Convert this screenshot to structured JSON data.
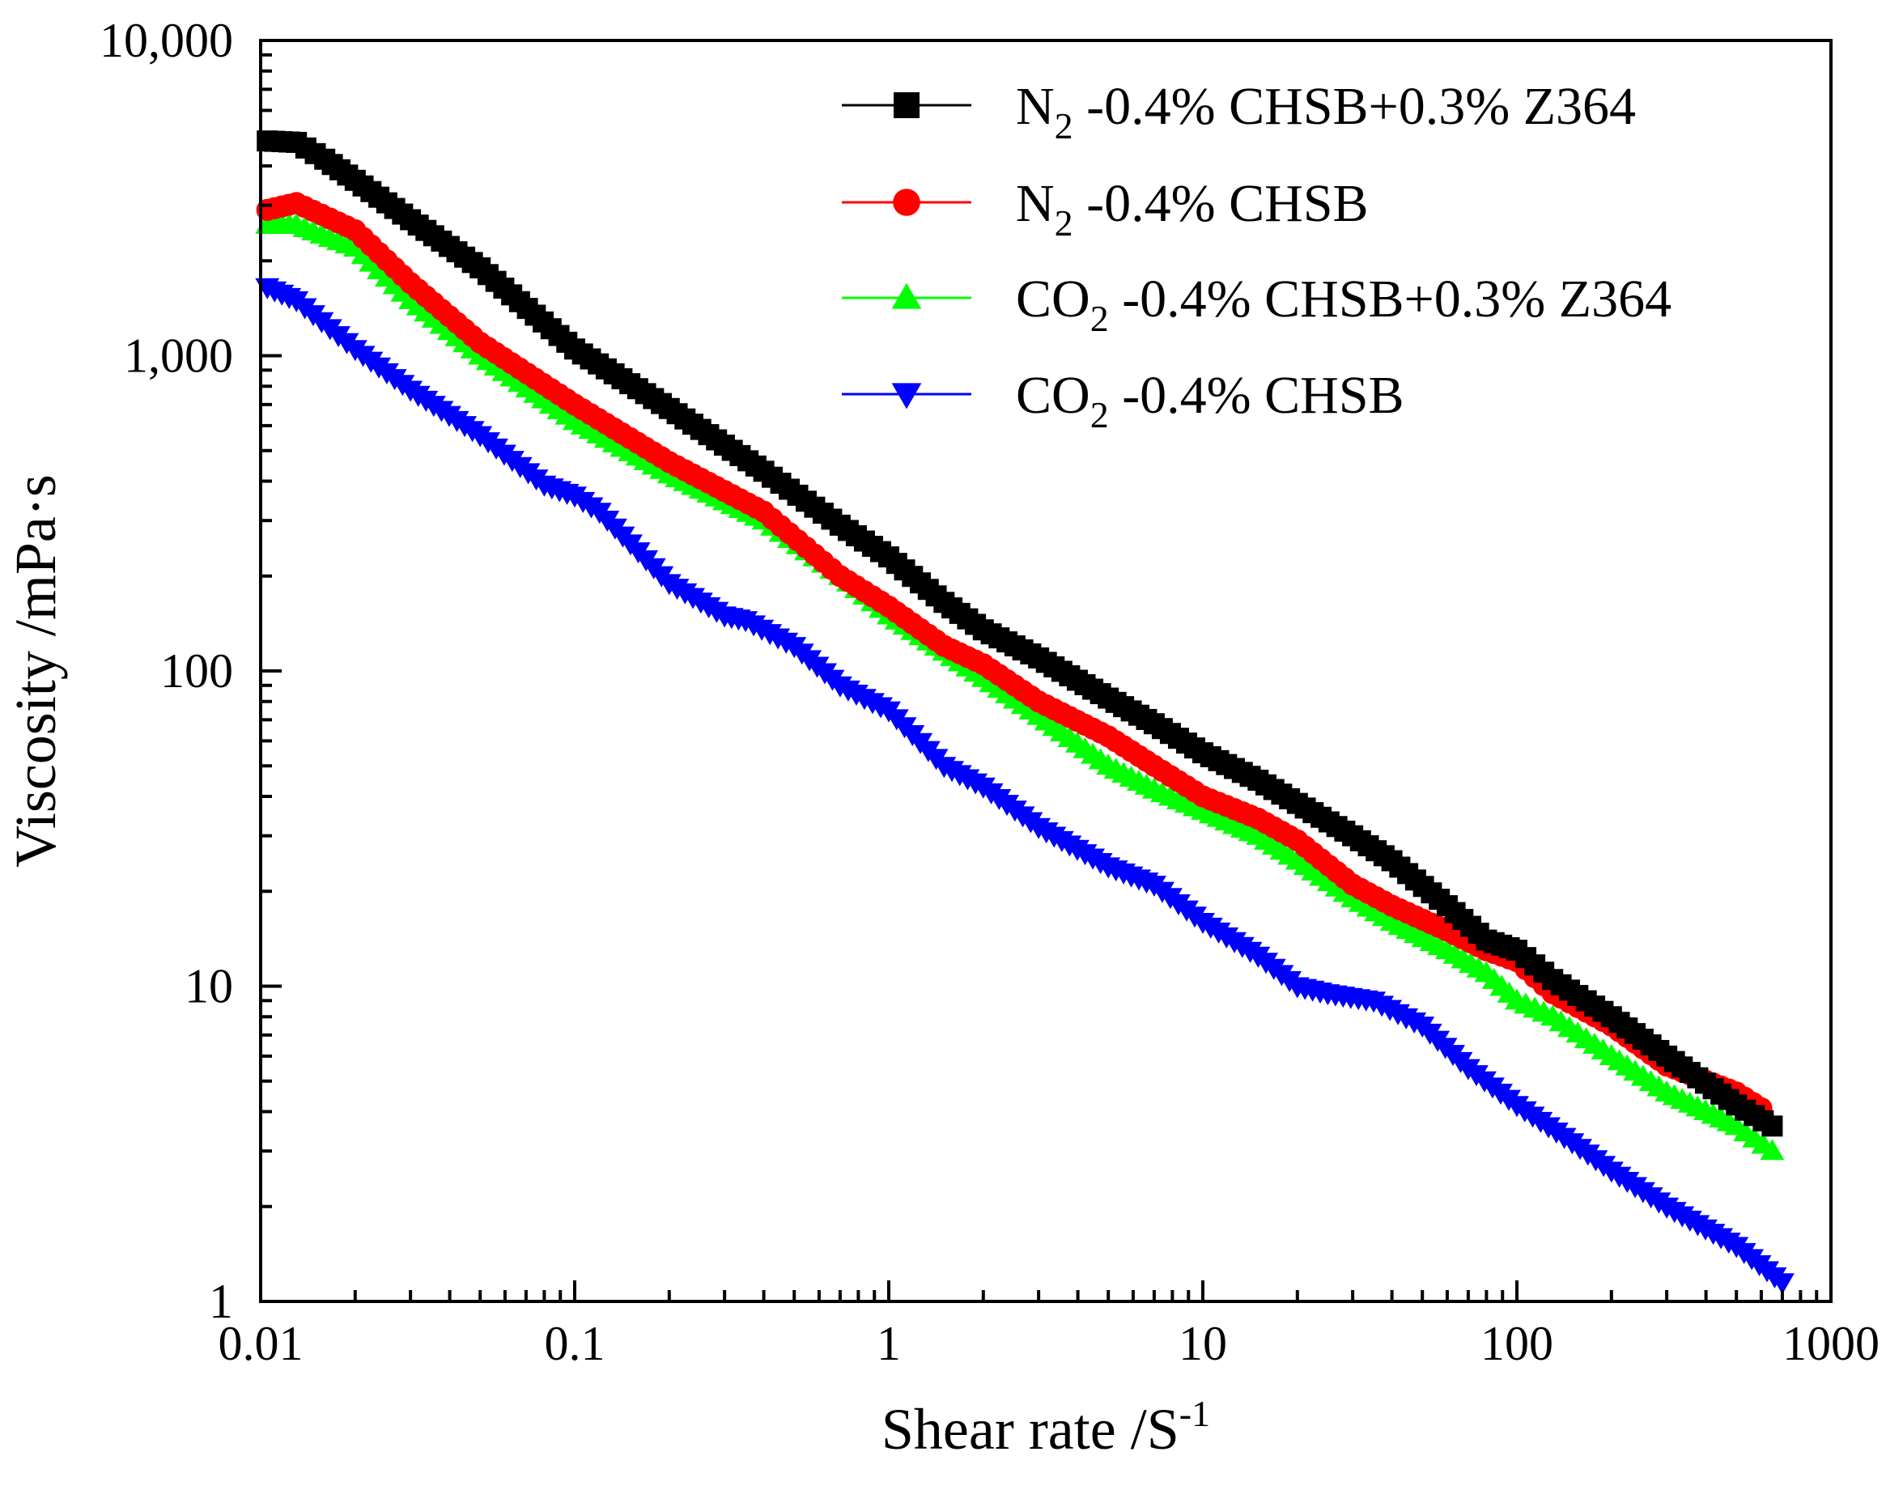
{
  "chart_data": {
    "type": "scatter",
    "xscale": "log",
    "yscale": "log",
    "xlabel": "Shear rate /S",
    "xlabel_sup": "-1",
    "ylabel": "Viscosity /mPa·s",
    "xlim": [
      0.01,
      1000
    ],
    "ylim": [
      1,
      10000
    ],
    "xticks": [
      {
        "value": 0.01,
        "label": "0.01"
      },
      {
        "value": 0.1,
        "label": "0.1"
      },
      {
        "value": 1,
        "label": "1"
      },
      {
        "value": 10,
        "label": "10"
      },
      {
        "value": 100,
        "label": "100"
      },
      {
        "value": 1000,
        "label": "1000"
      }
    ],
    "yticks": [
      {
        "value": 1,
        "label": "1"
      },
      {
        "value": 10,
        "label": "10"
      },
      {
        "value": 100,
        "label": "100"
      },
      {
        "value": 1000,
        "label": "1,000"
      },
      {
        "value": 10000,
        "label": "10,000"
      }
    ],
    "legend_position": "top-right",
    "series": [
      {
        "name": "N2-0.4% CHSB+0.3% Z364",
        "label_parts": [
          "N",
          "2",
          "-0.4% CHSB+0.3% Z364"
        ],
        "marker": "square",
        "color": "#000000",
        "points": [
          [
            0.0105,
            4800
          ],
          [
            0.013,
            4750
          ],
          [
            0.016,
            4200
          ],
          [
            0.02,
            3600
          ],
          [
            0.03,
            2700
          ],
          [
            0.05,
            1900
          ],
          [
            0.1,
            1050
          ],
          [
            0.2,
            680
          ],
          [
            0.4,
            430
          ],
          [
            0.7,
            290
          ],
          [
            1,
            230
          ],
          [
            1.5,
            165
          ],
          [
            2,
            135
          ],
          [
            3,
            110
          ],
          [
            5,
            82
          ],
          [
            7,
            68
          ],
          [
            10,
            55
          ],
          [
            15,
            45
          ],
          [
            20,
            38
          ],
          [
            30,
            30
          ],
          [
            40,
            25
          ],
          [
            60,
            18
          ],
          [
            80,
            14
          ],
          [
            100,
            13
          ],
          [
            130,
            10.5
          ],
          [
            200,
            8
          ],
          [
            300,
            6
          ],
          [
            500,
            4.2
          ],
          [
            650,
            3.6
          ]
        ]
      },
      {
        "name": "N2-0.4% CHSB",
        "label_parts": [
          "N",
          "2",
          "-0.4% CHSB"
        ],
        "marker": "circle",
        "color": "#ff0000",
        "points": [
          [
            0.0105,
            2900
          ],
          [
            0.013,
            3050
          ],
          [
            0.02,
            2500
          ],
          [
            0.03,
            1700
          ],
          [
            0.05,
            1100
          ],
          [
            0.1,
            700
          ],
          [
            0.2,
            460
          ],
          [
            0.4,
            320
          ],
          [
            0.7,
            200
          ],
          [
            1,
            160
          ],
          [
            1.5,
            120
          ],
          [
            2,
            105
          ],
          [
            3,
            80
          ],
          [
            5,
            62
          ],
          [
            7,
            50
          ],
          [
            10,
            40
          ],
          [
            15,
            34
          ],
          [
            20,
            29
          ],
          [
            30,
            21
          ],
          [
            40,
            18
          ],
          [
            60,
            15
          ],
          [
            80,
            13
          ],
          [
            100,
            12
          ],
          [
            130,
            9.5
          ],
          [
            200,
            7.5
          ],
          [
            300,
            5.6
          ],
          [
            500,
            4.6
          ],
          [
            600,
            4.1
          ]
        ]
      },
      {
        "name": "CO2-0.4% CHSB+0.3% Z364",
        "label_parts": [
          "CO",
          "2",
          "-0.4% CHSB+0.3% Z364"
        ],
        "marker": "triangle-up",
        "color": "#00ff00",
        "points": [
          [
            0.0105,
            2600
          ],
          [
            0.013,
            2600
          ],
          [
            0.02,
            2200
          ],
          [
            0.03,
            1500
          ],
          [
            0.05,
            1000
          ],
          [
            0.1,
            620
          ],
          [
            0.2,
            420
          ],
          [
            0.4,
            300
          ],
          [
            0.7,
            200
          ],
          [
            1,
            150
          ],
          [
            1.5,
            115
          ],
          [
            2,
            95
          ],
          [
            3,
            72
          ],
          [
            5,
            50
          ],
          [
            7,
            42
          ],
          [
            10,
            36
          ],
          [
            15,
            30
          ],
          [
            20,
            25
          ],
          [
            30,
            19
          ],
          [
            40,
            16
          ],
          [
            60,
            13
          ],
          [
            80,
            11
          ],
          [
            100,
            9
          ],
          [
            130,
            8
          ],
          [
            200,
            6
          ],
          [
            300,
            4.6
          ],
          [
            500,
            3.6
          ],
          [
            650,
            3
          ]
        ]
      },
      {
        "name": "CO2-0.4% CHSB",
        "label_parts": [
          "CO",
          "2",
          "-0.4% CHSB"
        ],
        "marker": "triangle-down",
        "color": "#0000ff",
        "points": [
          [
            0.0105,
            1650
          ],
          [
            0.013,
            1500
          ],
          [
            0.02,
            1050
          ],
          [
            0.03,
            780
          ],
          [
            0.05,
            560
          ],
          [
            0.08,
            390
          ],
          [
            0.1,
            360
          ],
          [
            0.12,
            320
          ],
          [
            0.2,
            190
          ],
          [
            0.3,
            150
          ],
          [
            0.35,
            145
          ],
          [
            0.5,
            120
          ],
          [
            0.7,
            90
          ],
          [
            1,
            75
          ],
          [
            1.5,
            50
          ],
          [
            2,
            43
          ],
          [
            3,
            32
          ],
          [
            5,
            24
          ],
          [
            7,
            21
          ],
          [
            10,
            16
          ],
          [
            15,
            12.5
          ],
          [
            20,
            10
          ],
          [
            25,
            9.5
          ],
          [
            35,
            9
          ],
          [
            50,
            7.5
          ],
          [
            70,
            5.5
          ],
          [
            100,
            4.2
          ],
          [
            150,
            3.2
          ],
          [
            200,
            2.6
          ],
          [
            300,
            2
          ],
          [
            500,
            1.5
          ],
          [
            700,
            1.15
          ]
        ]
      }
    ]
  }
}
